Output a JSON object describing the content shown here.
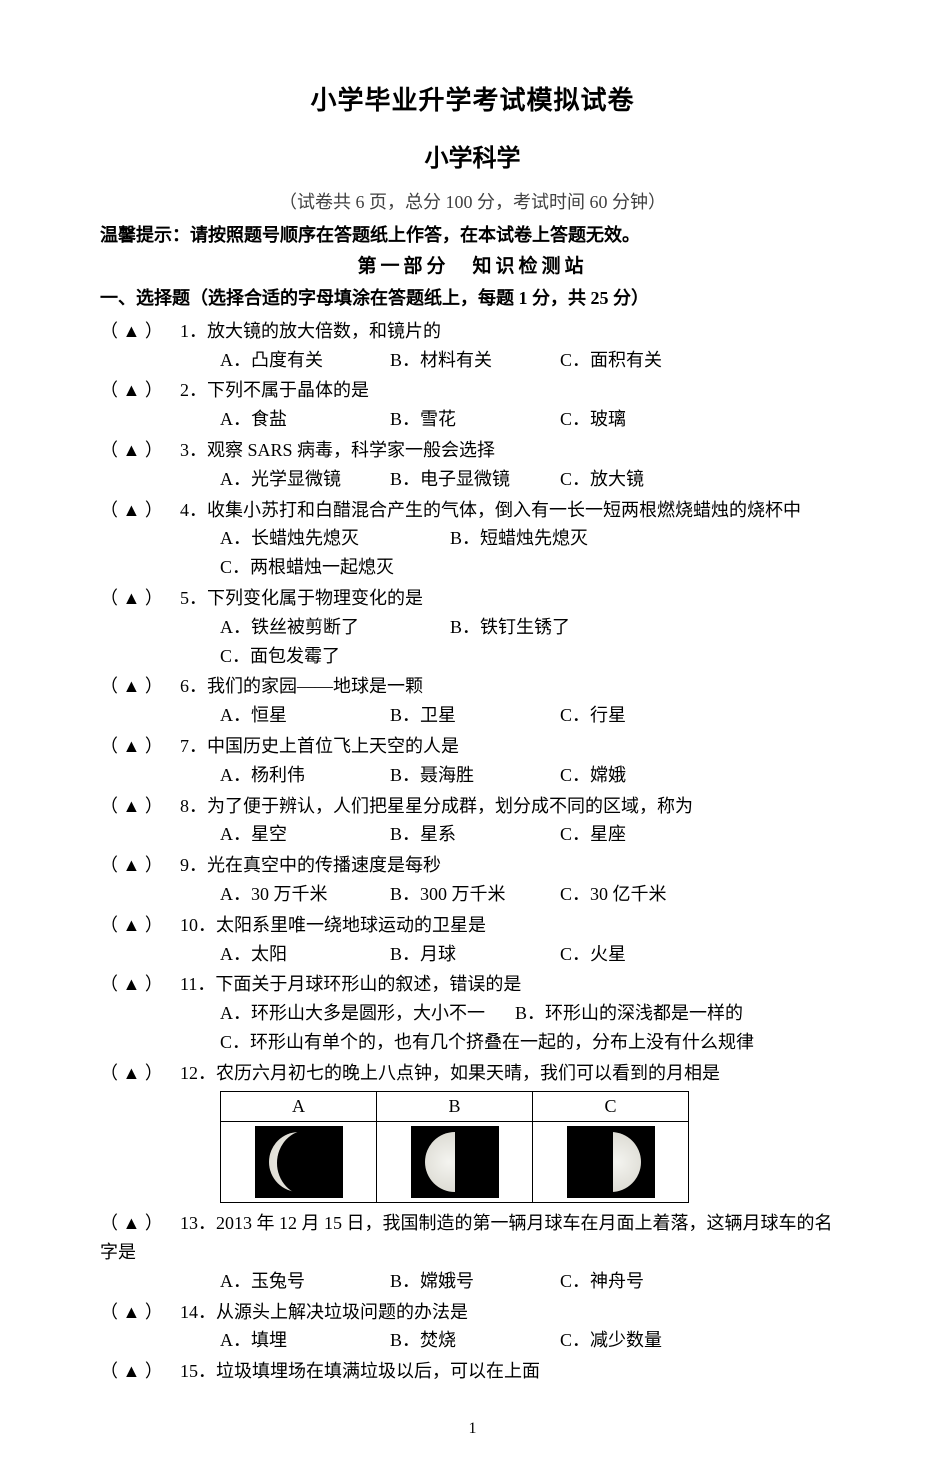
{
  "title_main": "小学毕业升学考试模拟试卷",
  "title_sub": "小学科学",
  "meta_line": "（试卷共 6 页，总分 100 分，考试时间 60 分钟）",
  "hint": "温馨提示：请按照题号顺序在答题纸上作答，在本试卷上答题无效。",
  "part1_title": "第一部分　知识检测站",
  "section1_title": "一、选择题（选择合适的字母填涂在答题纸上，每题 1 分，共 25 分）",
  "marker": "（ ▲ ）",
  "questions": [
    {
      "n": "1．",
      "stem": "放大镜的放大倍数，和镜片的",
      "opts": [
        "A．凸度有关",
        "B．材料有关",
        "C．面积有关"
      ]
    },
    {
      "n": "2．",
      "stem": "下列不属于晶体的是",
      "opts": [
        "A．食盐",
        "B．雪花",
        "C．玻璃"
      ]
    },
    {
      "n": "3．",
      "stem": "观察 SARS 病毒，科学家一般会选择",
      "opts": [
        "A．光学显微镜",
        "B．电子显微镜",
        "C．放大镜"
      ]
    },
    {
      "n": "4．",
      "stem": "收集小苏打和白醋混合产生的气体，倒入有一长一短两根燃烧蜡烛的烧杯中",
      "opts": [
        "A．长蜡烛先熄灭",
        "B．短蜡烛先熄灭",
        "C．两根蜡烛一起熄灭"
      ],
      "wide": true
    },
    {
      "n": "5．",
      "stem": "下列变化属于物理变化的是",
      "opts": [
        "A．铁丝被剪断了",
        "B．铁钉生锈了",
        "C．面包发霉了"
      ],
      "wide": true
    },
    {
      "n": "6．",
      "stem": "我们的家园——地球是一颗",
      "opts": [
        "A．恒星",
        "B．卫星",
        "C．行星"
      ]
    },
    {
      "n": "7．",
      "stem": "中国历史上首位飞上天空的人是",
      "opts": [
        "A．杨利伟",
        "B．聂海胜",
        "C．嫦娥"
      ]
    },
    {
      "n": "8．",
      "stem": "为了便于辨认，人们把星星分成群，划分成不同的区域，称为",
      "opts": [
        "A．星空",
        "B．星系",
        "C．星座"
      ]
    },
    {
      "n": "9．",
      "stem": "光在真空中的传播速度是每秒",
      "opts": [
        "A．30 万千米",
        "B．300 万千米",
        "C．30 亿千米"
      ]
    },
    {
      "n": "10．",
      "stem": "太阳系里唯一绕地球运动的卫星是",
      "opts": [
        "A．太阳",
        "B．月球",
        "C．火星"
      ]
    },
    {
      "n": "11．",
      "stem": "下面关于月球环形山的叙述，错误的是",
      "opts_multi": [
        [
          "A．环形山大多是圆形，大小不一",
          "B．环形山的深浅都是一样的"
        ],
        [
          "C．环形山有单个的，也有几个挤叠在一起的，分布上没有什么规律"
        ]
      ]
    },
    {
      "n": "12．",
      "stem": "农历六月初七的晚上八点钟，如果天晴，我们可以看到的月相是",
      "moon": {
        "labels": [
          "A",
          "B",
          "C"
        ]
      }
    },
    {
      "n": "13．",
      "stem": "2013 年 12 月 15 日，我国制造的第一辆月球车在月面上着落，这辆月球车的名字是",
      "opts": [
        "A．玉兔号",
        "B．嫦娥号",
        "C．神舟号"
      ]
    },
    {
      "n": "14．",
      "stem": "从源头上解决垃圾问题的办法是",
      "opts": [
        "A．填埋",
        "B．焚烧",
        "C．减少数量"
      ]
    },
    {
      "n": "15．",
      "stem": "垃圾填埋场在填满垃圾以后，可以在上面",
      "opts": null
    }
  ],
  "page_number": "1"
}
